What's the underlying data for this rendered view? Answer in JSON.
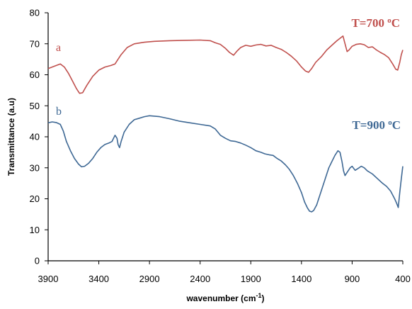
{
  "chart_data": {
    "type": "line",
    "title": "",
    "xlabel": "wavenumber (cm",
    "xlabel_sup": "-1",
    "xlabel_close": ")",
    "ylabel": "Transmittance  (a.u)",
    "xlim": [
      3900,
      400
    ],
    "ylim": [
      0,
      80
    ],
    "x_reversed": true,
    "xticks": [
      3900,
      3400,
      2900,
      2400,
      1900,
      1400,
      900,
      400
    ],
    "yticks": [
      0,
      10,
      20,
      30,
      40,
      50,
      60,
      70,
      80
    ],
    "grid": false,
    "legend": "none",
    "series": [
      {
        "letter": "a",
        "annotation": "T=700 ",
        "annotation_sup": "o",
        "annotation_end": "C",
        "color": "#c0504d",
        "points": [
          [
            3900,
            62
          ],
          [
            3820,
            63
          ],
          [
            3780,
            63.5
          ],
          [
            3740,
            62.5
          ],
          [
            3700,
            60.5
          ],
          [
            3660,
            58
          ],
          [
            3620,
            55.5
          ],
          [
            3590,
            54
          ],
          [
            3560,
            54.2
          ],
          [
            3520,
            56.5
          ],
          [
            3460,
            59.5
          ],
          [
            3400,
            61.5
          ],
          [
            3340,
            62.5
          ],
          [
            3280,
            63
          ],
          [
            3240,
            63.5
          ],
          [
            3210,
            65
          ],
          [
            3180,
            66.5
          ],
          [
            3120,
            68.8
          ],
          [
            3050,
            70
          ],
          [
            2950,
            70.5
          ],
          [
            2850,
            70.8
          ],
          [
            2700,
            71
          ],
          [
            2550,
            71.1
          ],
          [
            2400,
            71.2
          ],
          [
            2300,
            71
          ],
          [
            2250,
            70.3
          ],
          [
            2200,
            69.8
          ],
          [
            2150,
            68.5
          ],
          [
            2110,
            67.2
          ],
          [
            2070,
            66.3
          ],
          [
            2040,
            67.5
          ],
          [
            2000,
            68.8
          ],
          [
            1950,
            69.5
          ],
          [
            1900,
            69.2
          ],
          [
            1850,
            69.6
          ],
          [
            1800,
            69.8
          ],
          [
            1750,
            69.3
          ],
          [
            1700,
            69.5
          ],
          [
            1650,
            68.8
          ],
          [
            1600,
            68.2
          ],
          [
            1550,
            67.2
          ],
          [
            1500,
            66
          ],
          [
            1450,
            64.5
          ],
          [
            1400,
            62.5
          ],
          [
            1360,
            61.2
          ],
          [
            1330,
            60.8
          ],
          [
            1300,
            62
          ],
          [
            1260,
            64
          ],
          [
            1200,
            66
          ],
          [
            1150,
            68
          ],
          [
            1100,
            69.5
          ],
          [
            1050,
            71
          ],
          [
            1010,
            72
          ],
          [
            990,
            72.5
          ],
          [
            970,
            70
          ],
          [
            950,
            67.5
          ],
          [
            930,
            68
          ],
          [
            900,
            69.2
          ],
          [
            860,
            69.8
          ],
          [
            820,
            70
          ],
          [
            780,
            69.7
          ],
          [
            740,
            68.8
          ],
          [
            700,
            69
          ],
          [
            660,
            68
          ],
          [
            620,
            67.2
          ],
          [
            580,
            66.5
          ],
          [
            540,
            65.5
          ],
          [
            500,
            63.5
          ],
          [
            470,
            61.8
          ],
          [
            450,
            61.5
          ],
          [
            430,
            64
          ],
          [
            415,
            66.5
          ],
          [
            400,
            68
          ]
        ]
      },
      {
        "letter": "b",
        "annotation": "T=900 ",
        "annotation_sup": "o",
        "annotation_end": "C",
        "color": "#3e6894",
        "points": [
          [
            3900,
            44.5
          ],
          [
            3860,
            44.8
          ],
          [
            3820,
            44.6
          ],
          [
            3780,
            44
          ],
          [
            3750,
            41.8
          ],
          [
            3720,
            38.5
          ],
          [
            3680,
            35.5
          ],
          [
            3640,
            33
          ],
          [
            3600,
            31.2
          ],
          [
            3570,
            30.3
          ],
          [
            3540,
            30.5
          ],
          [
            3500,
            31.5
          ],
          [
            3460,
            33
          ],
          [
            3420,
            35
          ],
          [
            3380,
            36.5
          ],
          [
            3340,
            37.5
          ],
          [
            3300,
            38
          ],
          [
            3270,
            38.5
          ],
          [
            3240,
            40.5
          ],
          [
            3220,
            39.5
          ],
          [
            3210,
            37.5
          ],
          [
            3195,
            36.5
          ],
          [
            3180,
            38.5
          ],
          [
            3150,
            41.5
          ],
          [
            3100,
            44
          ],
          [
            3050,
            45.5
          ],
          [
            3000,
            46
          ],
          [
            2950,
            46.5
          ],
          [
            2900,
            46.8
          ],
          [
            2800,
            46.5
          ],
          [
            2700,
            45.8
          ],
          [
            2600,
            45
          ],
          [
            2500,
            44.5
          ],
          [
            2400,
            44
          ],
          [
            2300,
            43.5
          ],
          [
            2250,
            42.5
          ],
          [
            2200,
            40.5
          ],
          [
            2150,
            39.5
          ],
          [
            2100,
            38.7
          ],
          [
            2050,
            38.5
          ],
          [
            2000,
            38
          ],
          [
            1950,
            37.3
          ],
          [
            1900,
            36.5
          ],
          [
            1850,
            35.5
          ],
          [
            1800,
            35
          ],
          [
            1760,
            34.5
          ],
          [
            1720,
            34.2
          ],
          [
            1680,
            34
          ],
          [
            1640,
            33
          ],
          [
            1600,
            32.2
          ],
          [
            1560,
            31
          ],
          [
            1520,
            29.5
          ],
          [
            1480,
            27.5
          ],
          [
            1440,
            25
          ],
          [
            1400,
            22
          ],
          [
            1370,
            19
          ],
          [
            1340,
            17
          ],
          [
            1320,
            16
          ],
          [
            1300,
            15.8
          ],
          [
            1280,
            16.2
          ],
          [
            1250,
            18
          ],
          [
            1220,
            21
          ],
          [
            1190,
            24
          ],
          [
            1160,
            27
          ],
          [
            1130,
            30
          ],
          [
            1100,
            32
          ],
          [
            1070,
            34
          ],
          [
            1040,
            35.5
          ],
          [
            1020,
            35
          ],
          [
            1000,
            32
          ],
          [
            985,
            29
          ],
          [
            970,
            27.5
          ],
          [
            950,
            28.5
          ],
          [
            920,
            30
          ],
          [
            900,
            30.5
          ],
          [
            870,
            29.2
          ],
          [
            840,
            29.8
          ],
          [
            810,
            30.5
          ],
          [
            780,
            30
          ],
          [
            750,
            29
          ],
          [
            700,
            28
          ],
          [
            650,
            26.5
          ],
          [
            600,
            25
          ],
          [
            560,
            24
          ],
          [
            520,
            22.5
          ],
          [
            480,
            20
          ],
          [
            460,
            18.5
          ],
          [
            445,
            17.2
          ],
          [
            430,
            22
          ],
          [
            415,
            26.5
          ],
          [
            400,
            30.5
          ]
        ]
      }
    ]
  }
}
